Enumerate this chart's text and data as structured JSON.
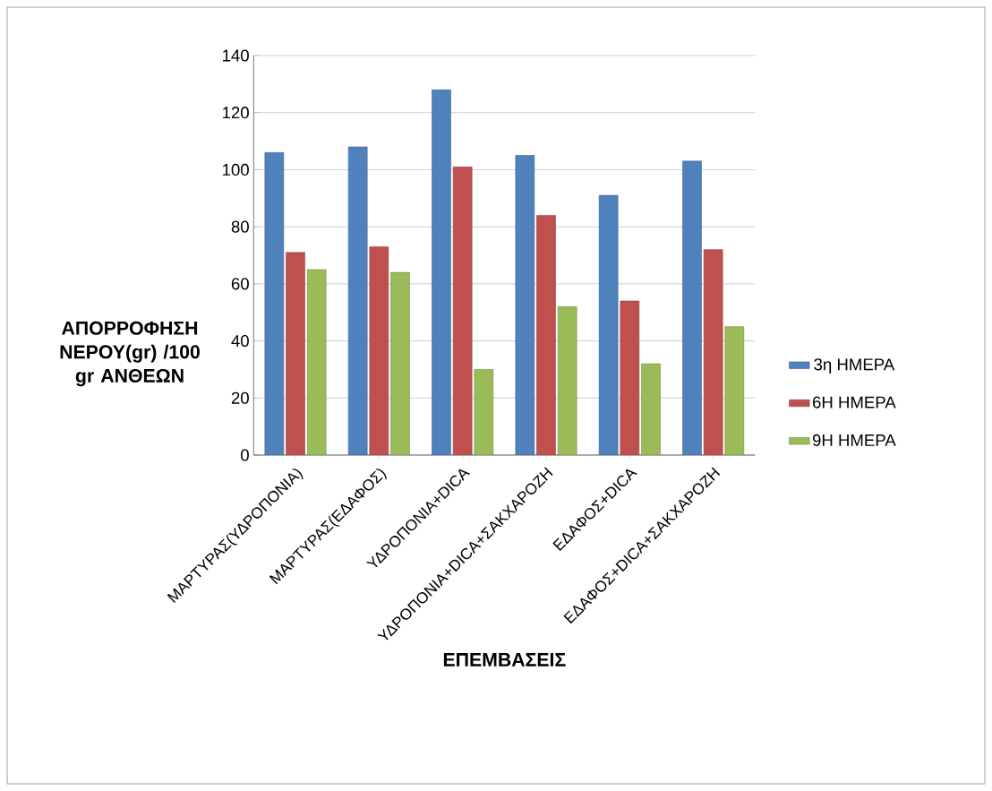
{
  "chart_data": {
    "type": "bar",
    "xlabel": "ΕΠΕΜΒΑΣΕΙΣ",
    "ylabel": "ΑΠΟΡΡΟΦΗΣΗ ΝΕΡΟΥ(gr) /100 gr ΑΝΘΕΩΝ",
    "categories": [
      "ΜΑΡΤΥΡΑΣ(ΥΔΡΟΠΟΝΙΑ)",
      "ΜΑΡΤΥΡΑΣ(ΕΔΑΦΟΣ)",
      "ΥΔΡΟΠΟΝΙΑ+DICA",
      "ΥΔΡΟΠΟΝΙΑ+DICA+ΣΑΚΧΑΡΟΖΗ",
      "ΕΔΑΦΟΣ+DICA",
      "ΕΔΑΦΟΣ+DICA+ΣΑΚΧΑΡΟΖΗ"
    ],
    "series": [
      {
        "name": "3η  ΗΜΕΡΑ",
        "color": "#4f81bd",
        "values": [
          106,
          108,
          128,
          105,
          91,
          103
        ]
      },
      {
        "name": "6Η  ΗΜΕΡΑ",
        "color": "#c0504d",
        "values": [
          71,
          73,
          101,
          84,
          54,
          72
        ]
      },
      {
        "name": "9Η  ΗΜΕΡΑ",
        "color": "#9bbb59",
        "values": [
          65,
          64,
          30,
          52,
          32,
          45
        ]
      }
    ],
    "ylim": [
      0,
      140
    ],
    "yticks": [
      0,
      20,
      40,
      60,
      80,
      100,
      120,
      140
    ],
    "grid": "y",
    "legend": "right"
  }
}
